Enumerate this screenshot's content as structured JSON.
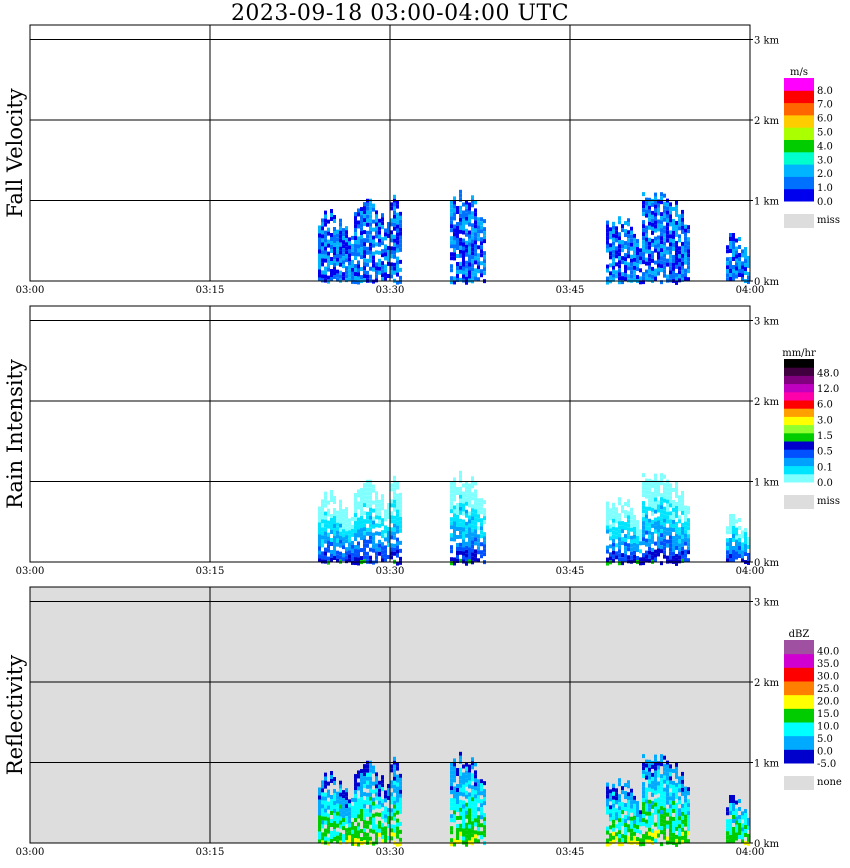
{
  "title": "2023-09-18  03:00-04:00 UTC",
  "chart_data": {
    "type": "heatmap",
    "x_ticks": [
      "03:00",
      "03:15",
      "03:30",
      "03:45",
      "04:00"
    ],
    "y_ticks": [
      "0 km",
      "1 km",
      "2 km",
      "3 km"
    ],
    "panels": [
      {
        "ylabel": "Fall Velocity",
        "background": "#ffffff",
        "colorbar": {
          "unit": "m/s",
          "colors": [
            "#0000ee",
            "#0070ff",
            "#00b4ff",
            "#00ffcc",
            "#00cc00",
            "#aaff00",
            "#ffcc00",
            "#ff6600",
            "#ff0000",
            "#ff00ff"
          ],
          "labels": [
            "0.0",
            "1.0",
            "2.0",
            "3.0",
            "4.0",
            "5.0",
            "6.0",
            "7.0",
            "8.0"
          ],
          "missing": {
            "label": "miss",
            "color": "#dddddd"
          }
        }
      },
      {
        "ylabel": "Rain Intensity",
        "background": "#ffffff",
        "colorbar": {
          "unit": "mm/hr",
          "colors": [
            "#80ffff",
            "#00e5ff",
            "#00a0ff",
            "#0050ff",
            "#0000cc",
            "#00cc00",
            "#90ff30",
            "#ffff00",
            "#ffa000",
            "#ff0000",
            "#ff00aa",
            "#c000c0",
            "#800080",
            "#400040",
            "#000000"
          ],
          "labels": [
            "0.0",
            "0.1",
            "0.5",
            "1.5",
            "3.0",
            "6.0",
            "12.0",
            "48.0"
          ],
          "missing": {
            "label": "miss",
            "color": "#dddddd"
          }
        }
      },
      {
        "ylabel": "Reflectivity",
        "background": "#dddddd",
        "colorbar": {
          "unit": "dBZ",
          "colors": [
            "#0000cc",
            "#00aaff",
            "#00ffff",
            "#00cc00",
            "#ffff00",
            "#ff8000",
            "#ff0000",
            "#d000d0",
            "#a050a0"
          ],
          "labels": [
            "-5.0",
            "0.0",
            "5.0",
            "10.0",
            "15.0",
            "20.0",
            "25.0",
            "30.0",
            "35.0",
            "40.0"
          ],
          "missing": {
            "label": "none",
            "color": "#dddddd"
          }
        }
      }
    ],
    "echo_cells": [
      {
        "t_start": "03:24",
        "t_end": "03:27",
        "top_km": 0.9
      },
      {
        "t_start": "03:27",
        "t_end": "03:30",
        "top_km": 1.05
      },
      {
        "t_start": "03:30",
        "t_end": "03:31",
        "top_km": 1.15
      },
      {
        "t_start": "03:35",
        "t_end": "03:38",
        "top_km": 1.15
      },
      {
        "t_start": "03:48",
        "t_end": "03:51",
        "top_km": 0.85
      },
      {
        "t_start": "03:51",
        "t_end": "03:55",
        "top_km": 1.2
      },
      {
        "t_start": "03:58",
        "t_end": "04:00",
        "top_km": 0.65
      }
    ]
  }
}
